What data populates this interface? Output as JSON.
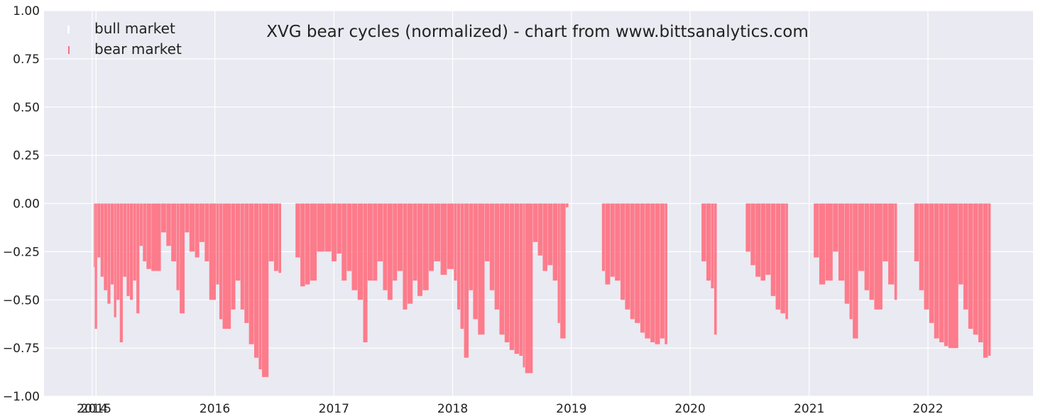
{
  "chart_data": {
    "type": "bar",
    "title": "XVG bear cycles (normalized)  - chart from www.bittsanalytics.com",
    "xlabel": "",
    "ylabel": "",
    "ylim": [
      -1.0,
      1.0
    ],
    "xlim": [
      "2014-07-25",
      "2022-11-20"
    ],
    "y_ticks": [
      -1.0,
      -0.75,
      -0.5,
      -0.25,
      0.0,
      0.25,
      0.5,
      0.75,
      1.0
    ],
    "y_tick_labels": [
      "−1.00",
      "−0.75",
      "−0.50",
      "−0.25",
      "0.00",
      "0.25",
      "0.50",
      "0.75",
      "1.00"
    ],
    "x_ticks": [
      "2014-12-20",
      "2015-01-01",
      "2016-01-01",
      "2017-01-01",
      "2018-01-01",
      "2019-01-01",
      "2020-01-01",
      "2021-01-01",
      "2022-01-01"
    ],
    "x_tick_labels": [
      "2014",
      "2015",
      "2016",
      "2017",
      "2018",
      "2019",
      "2020",
      "2021",
      "2022"
    ],
    "grid": true,
    "legend": {
      "position": "top-left",
      "entries": [
        "bull market",
        "bear market"
      ]
    },
    "colors": {
      "bull": "#ffffff",
      "bear": "#ff6b7c",
      "background": "#eaeaf2",
      "grid": "#ffffff"
    },
    "series": [
      {
        "name": "bear market",
        "color": "#ff6b7c",
        "points": [
          [
            "2014-12-25",
            -0.33
          ],
          [
            "2014-12-28",
            -0.65
          ],
          [
            "2015-01-05",
            -0.28
          ],
          [
            "2015-01-15",
            -0.38
          ],
          [
            "2015-01-25",
            -0.45
          ],
          [
            "2015-02-05",
            -0.52
          ],
          [
            "2015-02-15",
            -0.42
          ],
          [
            "2015-02-25",
            -0.59
          ],
          [
            "2015-03-05",
            -0.5
          ],
          [
            "2015-03-15",
            -0.72
          ],
          [
            "2015-03-25",
            -0.38
          ],
          [
            "2015-04-05",
            -0.48
          ],
          [
            "2015-04-15",
            -0.5
          ],
          [
            "2015-04-25",
            -0.4
          ],
          [
            "2015-05-05",
            -0.57
          ],
          [
            "2015-05-15",
            -0.22
          ],
          [
            "2015-05-25",
            -0.3
          ],
          [
            "2015-06-05",
            -0.34
          ],
          [
            "2015-06-20",
            -0.35
          ],
          [
            "2015-07-20",
            -0.15
          ],
          [
            "2015-08-05",
            -0.22
          ],
          [
            "2015-08-20",
            -0.3
          ],
          [
            "2015-09-05",
            -0.45
          ],
          [
            "2015-09-15",
            -0.57
          ],
          [
            "2015-10-01",
            -0.15
          ],
          [
            "2015-10-15",
            -0.25
          ],
          [
            "2015-11-01",
            -0.28
          ],
          [
            "2015-11-15",
            -0.2
          ],
          [
            "2015-12-01",
            -0.3
          ],
          [
            "2015-12-15",
            -0.5
          ],
          [
            "2016-01-05",
            -0.42
          ],
          [
            "2016-01-15",
            -0.6
          ],
          [
            "2016-01-25",
            -0.65
          ],
          [
            "2016-02-20",
            -0.55
          ],
          [
            "2016-03-05",
            -0.4
          ],
          [
            "2016-03-20",
            -0.55
          ],
          [
            "2016-04-01",
            -0.62
          ],
          [
            "2016-04-15",
            -0.73
          ],
          [
            "2016-05-01",
            -0.8
          ],
          [
            "2016-05-15",
            -0.86
          ],
          [
            "2016-05-25",
            -0.9
          ],
          [
            "2016-06-15",
            -0.3
          ],
          [
            "2016-07-01",
            -0.35
          ],
          [
            "2016-07-15",
            -0.36
          ],
          [
            "2016-09-05",
            -0.28
          ],
          [
            "2016-09-20",
            -0.43
          ],
          [
            "2016-10-05",
            -0.42
          ],
          [
            "2016-10-20",
            -0.4
          ],
          [
            "2016-11-10",
            -0.25
          ],
          [
            "2016-12-05",
            -0.25
          ],
          [
            "2016-12-25",
            -0.3
          ],
          [
            "2017-01-10",
            -0.26
          ],
          [
            "2017-01-25",
            -0.4
          ],
          [
            "2017-02-10",
            -0.35
          ],
          [
            "2017-02-25",
            -0.45
          ],
          [
            "2017-03-15",
            -0.5
          ],
          [
            "2017-04-01",
            -0.72
          ],
          [
            "2017-04-15",
            -0.4
          ],
          [
            "2017-05-01",
            -0.4
          ],
          [
            "2017-05-15",
            -0.3
          ],
          [
            "2017-06-01",
            -0.45
          ],
          [
            "2017-06-15",
            -0.5
          ],
          [
            "2017-07-01",
            -0.4
          ],
          [
            "2017-07-15",
            -0.35
          ],
          [
            "2017-08-01",
            -0.55
          ],
          [
            "2017-08-15",
            -0.52
          ],
          [
            "2017-09-01",
            -0.4
          ],
          [
            "2017-09-15",
            -0.48
          ],
          [
            "2017-10-01",
            -0.45
          ],
          [
            "2017-10-20",
            -0.35
          ],
          [
            "2017-11-05",
            -0.3
          ],
          [
            "2017-11-25",
            -0.37
          ],
          [
            "2017-12-15",
            -0.34
          ],
          [
            "2018-01-05",
            -0.4
          ],
          [
            "2018-01-15",
            -0.55
          ],
          [
            "2018-01-25",
            -0.65
          ],
          [
            "2018-02-05",
            -0.8
          ],
          [
            "2018-02-20",
            -0.45
          ],
          [
            "2018-03-05",
            -0.6
          ],
          [
            "2018-03-20",
            -0.68
          ],
          [
            "2018-04-10",
            -0.3
          ],
          [
            "2018-04-25",
            -0.45
          ],
          [
            "2018-05-10",
            -0.55
          ],
          [
            "2018-05-25",
            -0.68
          ],
          [
            "2018-06-10",
            -0.72
          ],
          [
            "2018-06-25",
            -0.76
          ],
          [
            "2018-07-10",
            -0.78
          ],
          [
            "2018-07-25",
            -0.79
          ],
          [
            "2018-08-05",
            -0.85
          ],
          [
            "2018-08-12",
            -0.88
          ],
          [
            "2018-09-05",
            -0.2
          ],
          [
            "2018-09-20",
            -0.27
          ],
          [
            "2018-10-05",
            -0.35
          ],
          [
            "2018-10-20",
            -0.32
          ],
          [
            "2018-11-05",
            -0.4
          ],
          [
            "2018-11-20",
            -0.62
          ],
          [
            "2018-11-28",
            -0.7
          ],
          [
            "2018-12-15",
            -0.02
          ],
          [
            "2019-04-05",
            -0.35
          ],
          [
            "2019-04-15",
            -0.42
          ],
          [
            "2019-05-01",
            -0.38
          ],
          [
            "2019-05-15",
            -0.4
          ],
          [
            "2019-06-01",
            -0.5
          ],
          [
            "2019-06-15",
            -0.55
          ],
          [
            "2019-07-01",
            -0.6
          ],
          [
            "2019-07-15",
            -0.62
          ],
          [
            "2019-08-01",
            -0.67
          ],
          [
            "2019-08-15",
            -0.7
          ],
          [
            "2019-09-01",
            -0.72
          ],
          [
            "2019-09-15",
            -0.73
          ],
          [
            "2019-10-01",
            -0.7
          ],
          [
            "2019-10-15",
            -0.73
          ],
          [
            "2020-02-05",
            -0.3
          ],
          [
            "2020-02-20",
            -0.4
          ],
          [
            "2020-03-05",
            -0.44
          ],
          [
            "2020-03-15",
            -0.68
          ],
          [
            "2020-06-20",
            -0.25
          ],
          [
            "2020-07-05",
            -0.32
          ],
          [
            "2020-07-20",
            -0.38
          ],
          [
            "2020-08-05",
            -0.4
          ],
          [
            "2020-08-20",
            -0.37
          ],
          [
            "2020-09-05",
            -0.48
          ],
          [
            "2020-09-20",
            -0.55
          ],
          [
            "2020-10-05",
            -0.57
          ],
          [
            "2020-10-20",
            -0.6
          ],
          [
            "2021-01-15",
            -0.28
          ],
          [
            "2021-02-01",
            -0.42
          ],
          [
            "2021-02-20",
            -0.4
          ],
          [
            "2021-03-15",
            -0.25
          ],
          [
            "2021-04-01",
            -0.4
          ],
          [
            "2021-04-20",
            -0.52
          ],
          [
            "2021-05-05",
            -0.6
          ],
          [
            "2021-05-15",
            -0.7
          ],
          [
            "2021-06-01",
            -0.35
          ],
          [
            "2021-06-20",
            -0.45
          ],
          [
            "2021-07-05",
            -0.5
          ],
          [
            "2021-07-20",
            -0.55
          ],
          [
            "2021-08-15",
            -0.3
          ],
          [
            "2021-09-01",
            -0.42
          ],
          [
            "2021-09-20",
            -0.5
          ],
          [
            "2021-11-20",
            -0.3
          ],
          [
            "2021-12-05",
            -0.45
          ],
          [
            "2021-12-20",
            -0.55
          ],
          [
            "2022-01-05",
            -0.62
          ],
          [
            "2022-01-20",
            -0.7
          ],
          [
            "2022-02-05",
            -0.72
          ],
          [
            "2022-02-20",
            -0.74
          ],
          [
            "2022-03-05",
            -0.75
          ],
          [
            "2022-04-05",
            -0.42
          ],
          [
            "2022-04-20",
            -0.55
          ],
          [
            "2022-05-05",
            -0.65
          ],
          [
            "2022-05-20",
            -0.68
          ],
          [
            "2022-06-05",
            -0.72
          ],
          [
            "2022-06-20",
            -0.8
          ],
          [
            "2022-07-05",
            -0.79
          ]
        ]
      }
    ]
  }
}
